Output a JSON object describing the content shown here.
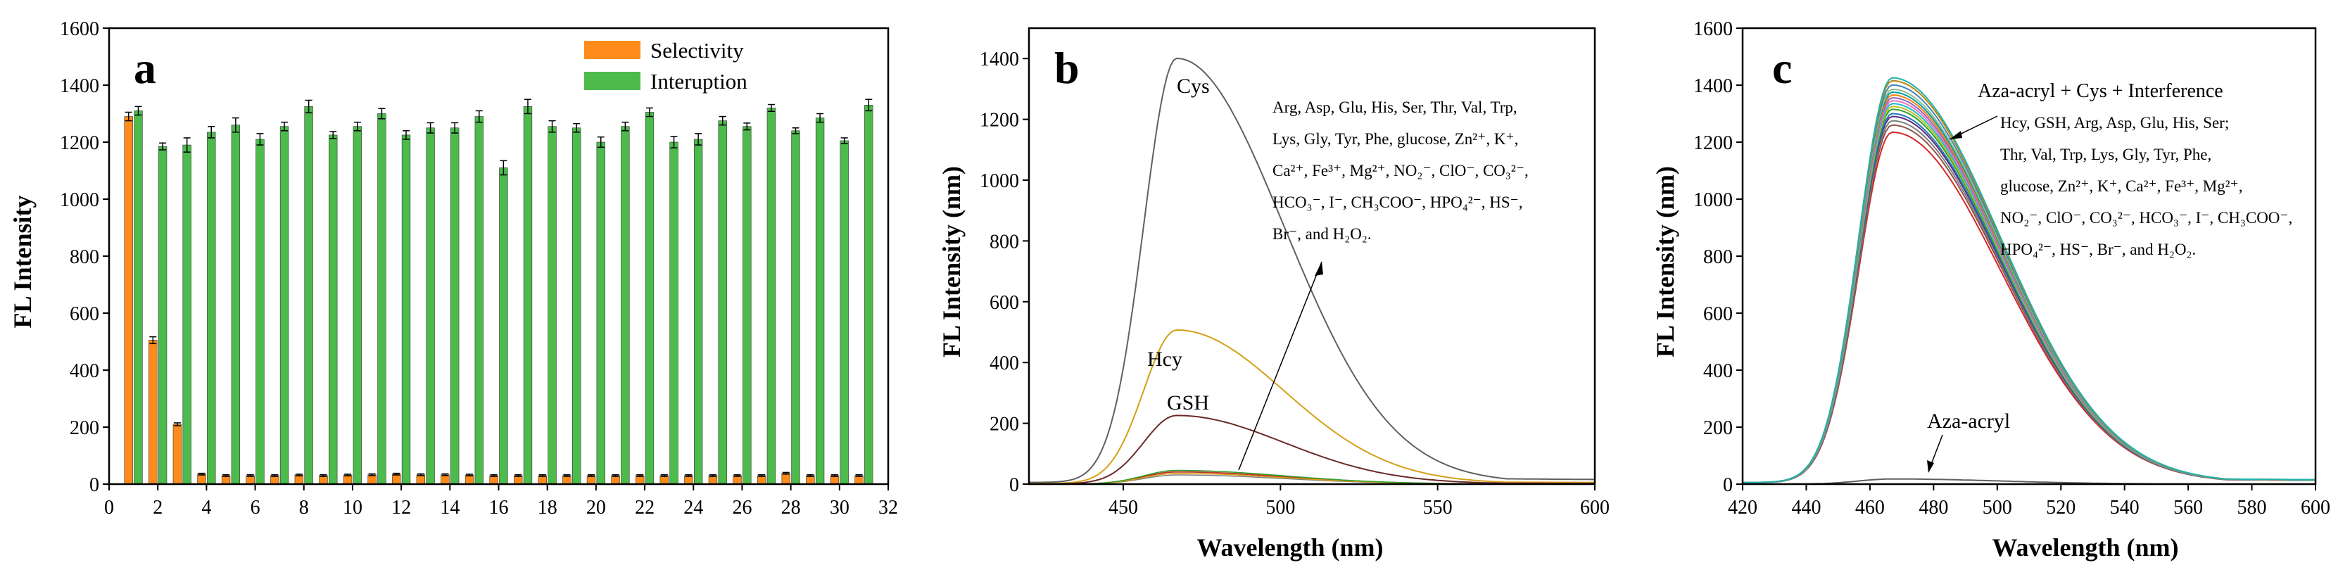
{
  "colors": {
    "selectivity": "#ff8c1a",
    "interuption": "#4cbb4c",
    "axis": "#000000",
    "b_cys": "#606060",
    "b_hcy": "#d4a017",
    "b_gsh": "#6b2b2b",
    "b_interf": "#c0392b",
    "c_aza": "#606060",
    "c_palette": [
      "#d62728",
      "#8c564b",
      "#7f7f7f",
      "#5b2c83",
      "#1f77b4",
      "#2ca02c",
      "#bcbd22",
      "#17becf",
      "#e377c2",
      "#9467bd",
      "#ff7f0e",
      "#00a0a0",
      "#8fbc8f",
      "#4682b4",
      "#b8860b",
      "#20b2aa"
    ]
  },
  "chart_data": [
    {
      "panel": "a",
      "type": "bar",
      "ylabel": "FL Intensity",
      "xlabel": "",
      "xlim": [
        0,
        32
      ],
      "ylim": [
        0,
        1600
      ],
      "xticks": [
        0,
        2,
        4,
        6,
        8,
        10,
        12,
        14,
        16,
        18,
        20,
        22,
        24,
        26,
        28,
        30,
        32
      ],
      "yticks": [
        0,
        200,
        400,
        600,
        800,
        1000,
        1200,
        1400,
        1600
      ],
      "categories": [
        1,
        2,
        3,
        4,
        5,
        6,
        7,
        8,
        9,
        10,
        11,
        12,
        13,
        14,
        15,
        16,
        17,
        18,
        19,
        20,
        21,
        22,
        23,
        24,
        25,
        26,
        27,
        28,
        29,
        30,
        31
      ],
      "legend": [
        "Selectivity",
        "Interuption"
      ],
      "series": [
        {
          "name": "Selectivity",
          "values": [
            1290,
            505,
            210,
            35,
            30,
            30,
            30,
            32,
            30,
            32,
            33,
            35,
            33,
            33,
            32,
            30,
            30,
            30,
            30,
            30,
            30,
            30,
            30,
            30,
            30,
            30,
            30,
            38,
            30,
            30,
            30
          ],
          "error": [
            15,
            12,
            5,
            3,
            3,
            3,
            3,
            3,
            3,
            3,
            3,
            3,
            3,
            3,
            3,
            3,
            3,
            3,
            3,
            3,
            3,
            3,
            3,
            3,
            3,
            3,
            3,
            3,
            3,
            3,
            3
          ]
        },
        {
          "name": "Interuption",
          "values": [
            1310,
            1185,
            1190,
            1235,
            1260,
            1210,
            1255,
            1325,
            1225,
            1255,
            1300,
            1225,
            1250,
            1250,
            1290,
            1110,
            1325,
            1255,
            1250,
            1200,
            1255,
            1305,
            1200,
            1210,
            1275,
            1255,
            1320,
            1240,
            1285,
            1205,
            1330
          ],
          "error": [
            15,
            12,
            25,
            20,
            25,
            20,
            15,
            22,
            12,
            15,
            18,
            15,
            18,
            18,
            20,
            25,
            25,
            20,
            15,
            18,
            15,
            15,
            20,
            20,
            15,
            12,
            12,
            10,
            15,
            10,
            20
          ]
        }
      ]
    },
    {
      "panel": "b",
      "type": "line",
      "xlabel": "Wavelength (nm)",
      "ylabel": "FL Intensity (nm)",
      "xlim": [
        420,
        600
      ],
      "ylim": [
        0,
        1500
      ],
      "xticks": [
        450,
        500,
        550,
        600
      ],
      "yticks": [
        0,
        200,
        400,
        600,
        800,
        1000,
        1200,
        1400
      ],
      "series": [
        {
          "name": "Cys",
          "peak_x": 467,
          "peak_y": 1395
        },
        {
          "name": "Hcy",
          "peak_x": 467,
          "peak_y": 505
        },
        {
          "name": "GSH",
          "peak_x": 467,
          "peak_y": 225
        },
        {
          "name": "Interference",
          "peak_x": 467,
          "peak_y": 40
        }
      ],
      "annotation_lines": [
        "Arg, Asp, Glu, His,  Ser, Thr, Val, Trp,",
        "Lys, Gly, Tyr, Phe, glucose, Zn²⁺, K⁺,",
        "Ca²⁺, Fe³⁺, Mg²⁺, NO₂⁻, ClO⁻, CO₃²⁻,",
        "HCO₃⁻, I⁻, CH₃COO⁻, HPO₄²⁻, HS⁻,",
        "Br⁻, and H₂O₂."
      ]
    },
    {
      "panel": "c",
      "type": "line",
      "xlabel": "Wavelength (nm)",
      "ylabel": "FL Intensity (nm)",
      "xlim": [
        420,
        600
      ],
      "ylim": [
        0,
        1600
      ],
      "xticks": [
        420,
        440,
        460,
        480,
        500,
        520,
        540,
        560,
        580,
        600
      ],
      "yticks": [
        0,
        200,
        400,
        600,
        800,
        1000,
        1200,
        1400,
        1600
      ],
      "peak_x": 467,
      "peaks": [
        1230,
        1255,
        1270,
        1285,
        1295,
        1310,
        1320,
        1330,
        1340,
        1350,
        1360,
        1370,
        1380,
        1395,
        1410,
        1420
      ],
      "aza_peak": 18,
      "title_annotation": "Aza-acryl + Cys + Interference",
      "aza_label": "Aza-acryl",
      "annotation_lines": [
        "Hcy, GSH, Arg, Asp, Glu, His,  Ser;",
        "Thr, Val, Trp, Lys, Gly, Tyr, Phe,",
        "glucose, Zn²⁺, K⁺, Ca²⁺, Fe³⁺, Mg²⁺,",
        "NO₂⁻, ClO⁻, CO₃²⁻, HCO₃⁻, I⁻, CH₃COO⁻,",
        "HPO₄²⁻, HS⁻, Br⁻, and H₂O₂."
      ]
    }
  ],
  "panel_letters": {
    "a": "a",
    "b": "b",
    "c": "c"
  }
}
